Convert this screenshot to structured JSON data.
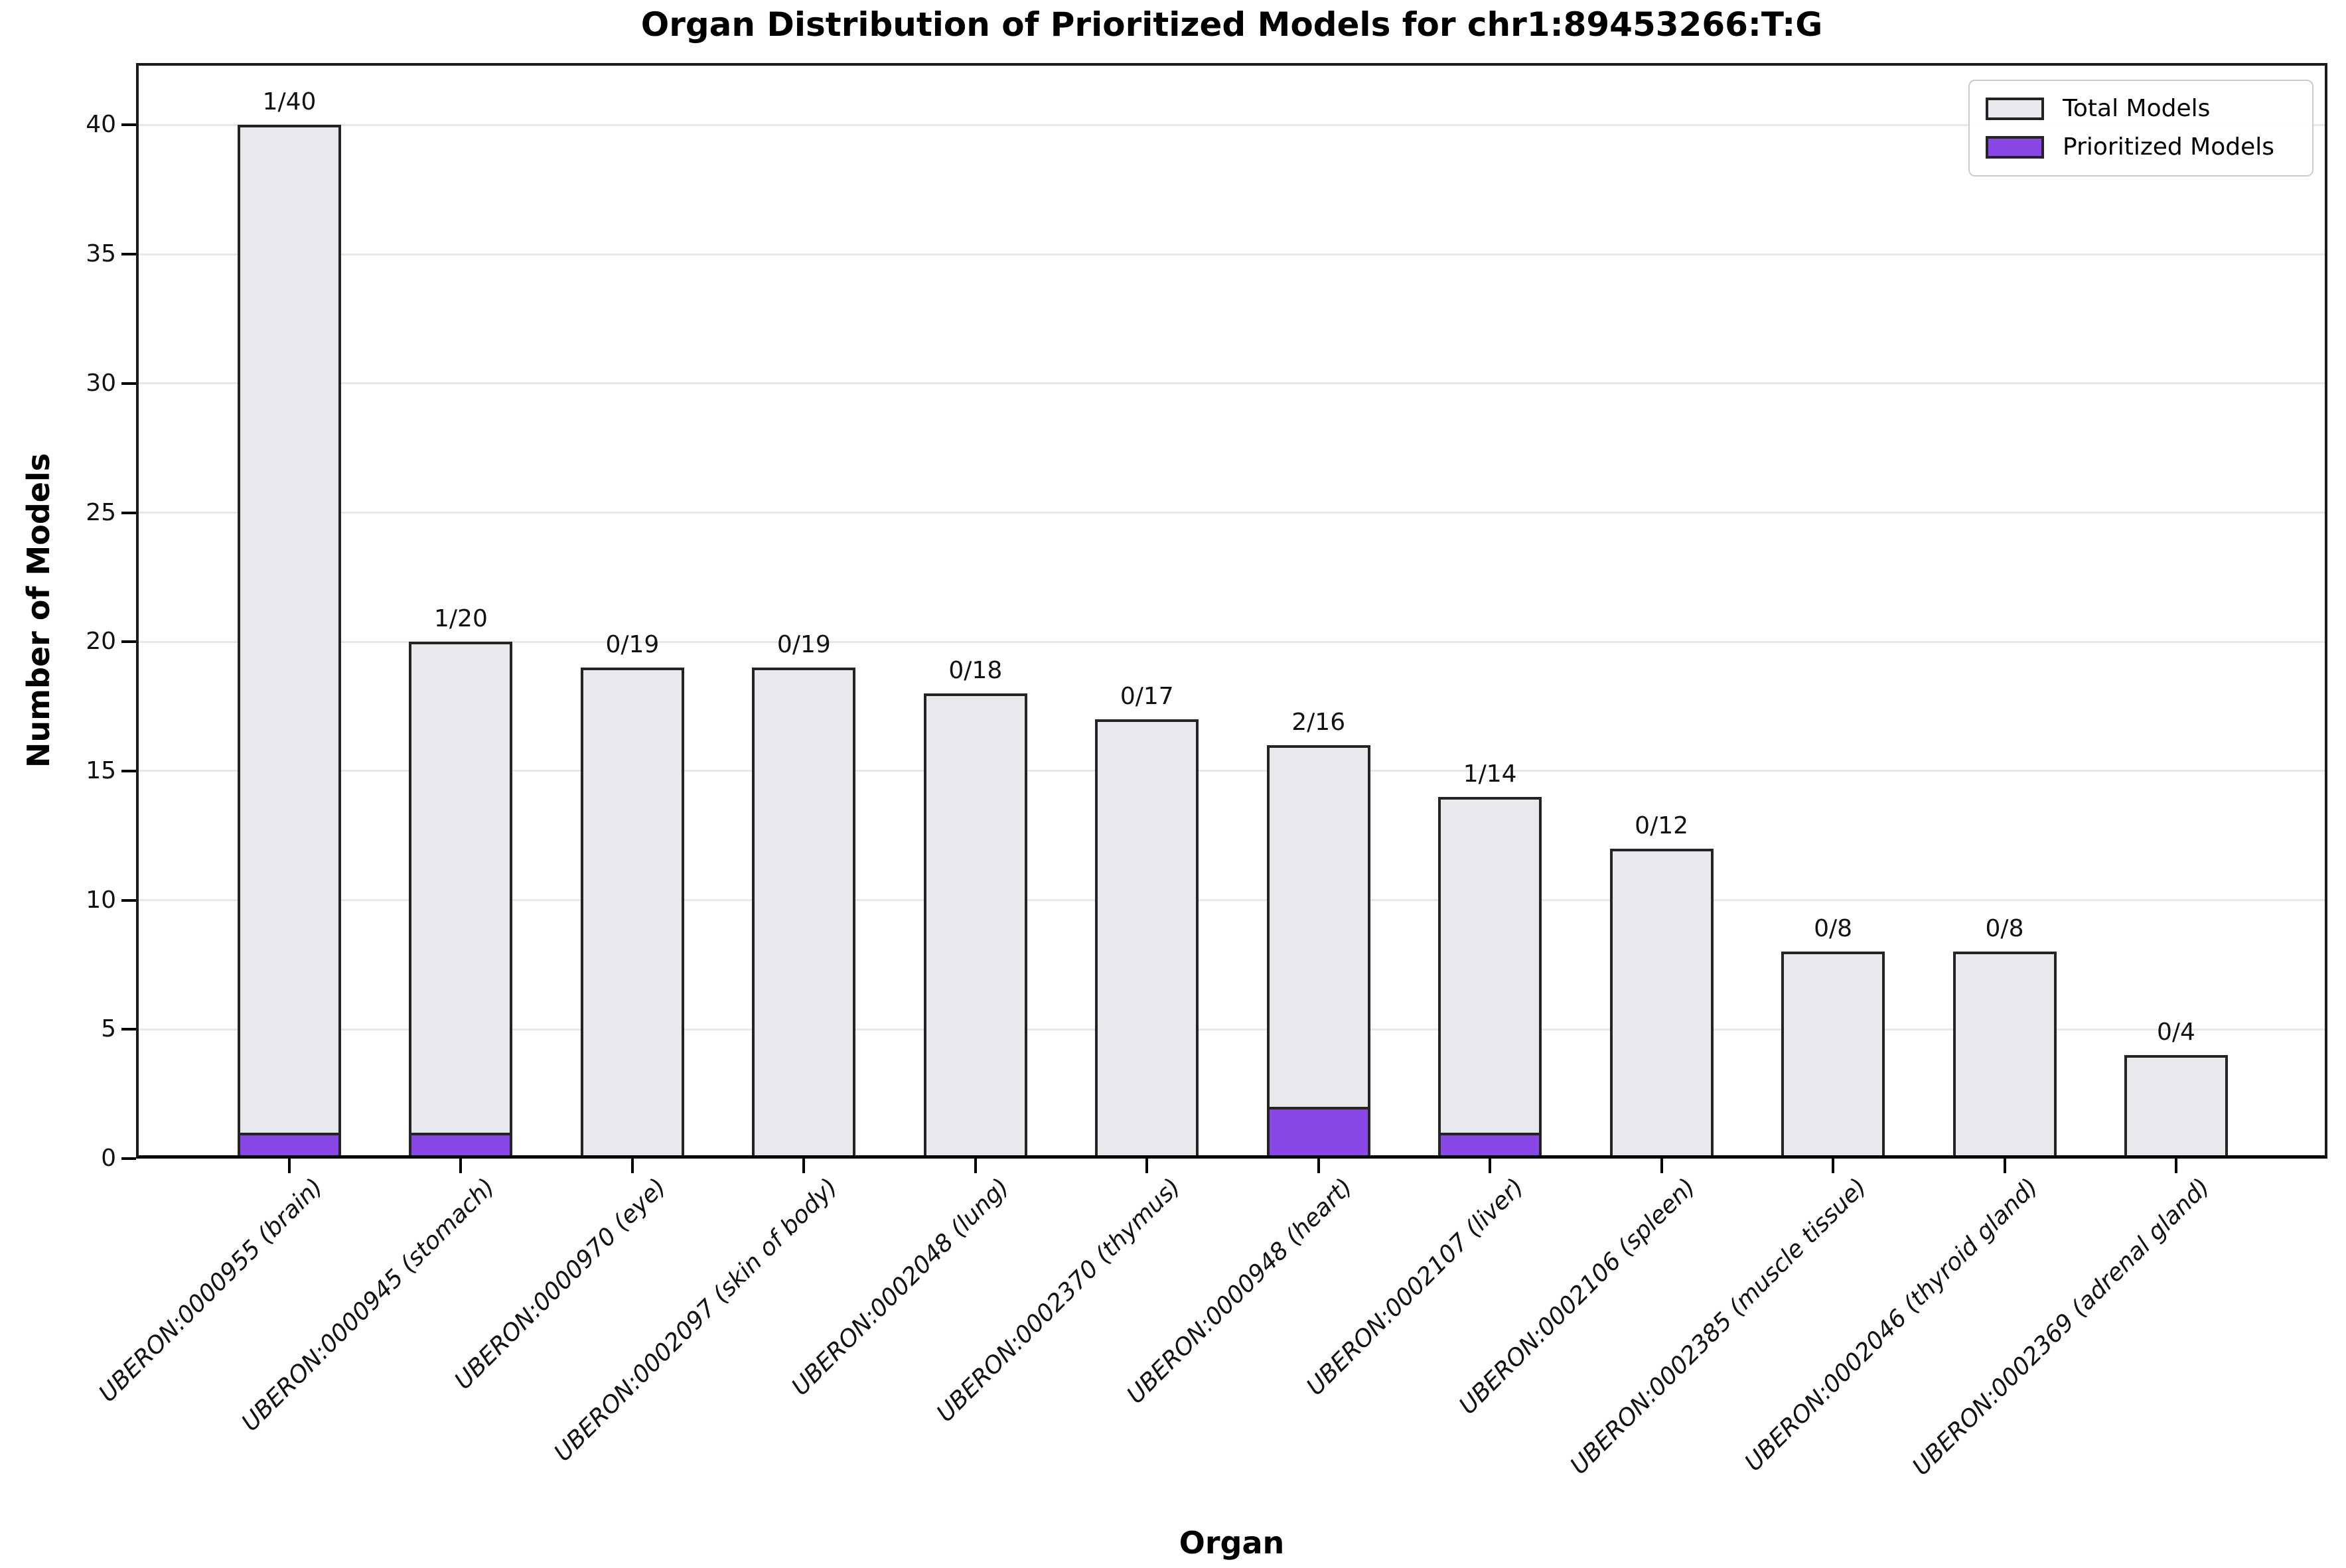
{
  "chart_data": {
    "type": "bar",
    "title": "Organ Distribution of Prioritized Models for chr1:89453266:T:G",
    "xlabel": "Organ",
    "ylabel": "Number of Models",
    "categories": [
      "UBERON:0000955 (brain)",
      "UBERON:0000945 (stomach)",
      "UBERON:0000970 (eye)",
      "UBERON:0002097 (skin of body)",
      "UBERON:0002048 (lung)",
      "UBERON:0002370 (thymus)",
      "UBERON:0000948 (heart)",
      "UBERON:0002107 (liver)",
      "UBERON:0002106 (spleen)",
      "UBERON:0002385 (muscle tissue)",
      "UBERON:0002046 (thyroid gland)",
      "UBERON:0002369 (adrenal gland)"
    ],
    "series": [
      {
        "name": "Total Models",
        "color": "#e8e9ed",
        "edge_color": "#242424",
        "values": [
          40,
          20,
          19,
          19,
          18,
          17,
          16,
          14,
          12,
          8,
          8,
          4
        ]
      },
      {
        "name": "Prioritized Models",
        "color": "#8a47e8",
        "edge_color": "#242424",
        "values": [
          1,
          1,
          0,
          0,
          0,
          0,
          2,
          1,
          0,
          0,
          0,
          0
        ]
      }
    ],
    "bar_labels": [
      "1/40",
      "1/20",
      "0/19",
      "0/19",
      "0/18",
      "0/17",
      "2/16",
      "1/14",
      "0/12",
      "0/8",
      "0/8",
      "0/4"
    ],
    "yticks": [
      0,
      5,
      10,
      15,
      20,
      25,
      30,
      35,
      40
    ],
    "ylim": [
      0,
      42.4
    ],
    "grid": "horizontal",
    "gridline_color": "#e7e7e7",
    "legend_position": "upper right"
  }
}
